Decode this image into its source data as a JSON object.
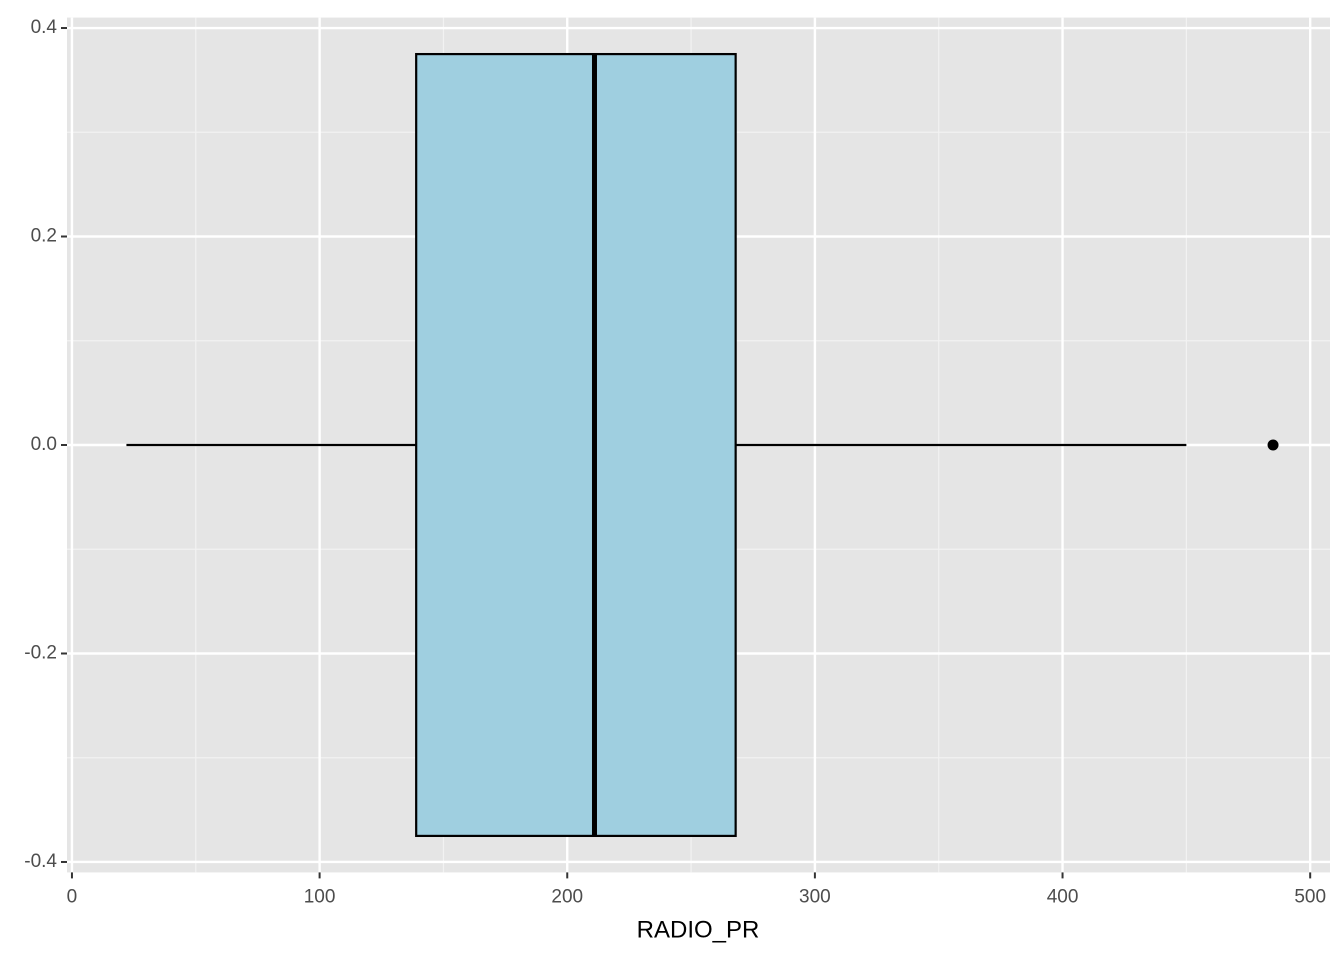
{
  "chart_data": {
    "type": "boxplot",
    "orientation": "horizontal",
    "x_label": "RADIO_PR",
    "boxes": [
      {
        "min": 22,
        "q1": 139,
        "median": 211,
        "q3": 268,
        "max": 450,
        "outliers": [
          485
        ]
      }
    ],
    "position": 0,
    "box_width": 0.75,
    "fill": "#9fcfe0",
    "xlim": [
      -2,
      508
    ],
    "xticks": [
      0,
      100,
      200,
      300,
      400,
      500
    ],
    "xminor": [
      50,
      150,
      250,
      350,
      450
    ],
    "ylim": [
      -0.41,
      0.41
    ],
    "yticks": [
      -0.4,
      -0.2,
      {
        "value": 0,
        "label": "0.0"
      },
      0.2,
      0.4
    ],
    "yminor": [
      -0.3,
      -0.1,
      0.1,
      0.3
    ],
    "grid": true
  }
}
